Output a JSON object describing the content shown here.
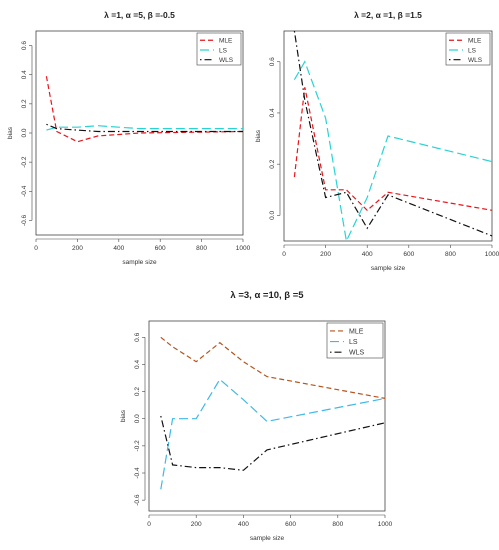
{
  "chart_data": [
    {
      "type": "line",
      "title": "λ =1, α =5, β =-0.5",
      "xlabel": "sample size",
      "ylabel": "bias",
      "x": [
        50,
        100,
        200,
        300,
        400,
        500,
        1000
      ],
      "xlim": [
        0,
        1000
      ],
      "ylim": [
        -0.7,
        0.7
      ],
      "xticks": [
        0,
        200,
        400,
        600,
        800,
        1000
      ],
      "yticks": [
        -0.6,
        -0.4,
        -0.2,
        0.0,
        0.2,
        0.4,
        0.6
      ],
      "legend_position": "top-right",
      "series": [
        {
          "name": "MLE",
          "color": "#e8151b",
          "dash": "dashed",
          "values": [
            0.39,
            0.01,
            -0.06,
            -0.02,
            -0.01,
            0.0,
            0.01
          ]
        },
        {
          "name": "LS",
          "color": "#2ad3d3",
          "dash": "longdash",
          "values": [
            0.02,
            0.04,
            0.04,
            0.05,
            0.04,
            0.03,
            0.03
          ]
        },
        {
          "name": "WLS",
          "color": "#111111",
          "dash": "dotdash",
          "values": [
            0.06,
            0.03,
            0.02,
            0.01,
            0.01,
            0.01,
            0.01
          ]
        }
      ]
    },
    {
      "type": "line",
      "title": "λ =2, α =1, β =1.5",
      "xlabel": "sample size",
      "ylabel": "bias",
      "x": [
        50,
        100,
        200,
        300,
        400,
        500,
        1000
      ],
      "xlim": [
        0,
        1000
      ],
      "ylim": [
        -0.1,
        0.72
      ],
      "xticks": [
        0,
        200,
        400,
        600,
        800,
        1000
      ],
      "yticks": [
        0.0,
        0.2,
        0.4,
        0.6
      ],
      "legend_position": "top-right",
      "series": [
        {
          "name": "MLE",
          "color": "#e8151b",
          "dash": "dashed",
          "values": [
            0.15,
            0.5,
            0.1,
            0.1,
            0.02,
            0.09,
            0.02
          ]
        },
        {
          "name": "LS",
          "color": "#2ad3d3",
          "dash": "longdash",
          "values": [
            0.53,
            0.6,
            0.38,
            -0.1,
            0.07,
            0.31,
            0.21
          ]
        },
        {
          "name": "WLS",
          "color": "#111111",
          "dash": "dotdash",
          "values": [
            0.72,
            0.45,
            0.07,
            0.09,
            -0.05,
            0.08,
            -0.08
          ]
        }
      ]
    },
    {
      "type": "line",
      "title": "λ =3, α =10, β =5",
      "xlabel": "sample size",
      "ylabel": "bias",
      "x": [
        50,
        100,
        200,
        300,
        400,
        500,
        1000
      ],
      "xlim": [
        0,
        1000
      ],
      "ylim": [
        -0.68,
        0.72
      ],
      "xticks": [
        0,
        200,
        400,
        600,
        800,
        1000
      ],
      "yticks": [
        -0.6,
        -0.4,
        -0.2,
        0.0,
        0.2,
        0.4,
        0.6
      ],
      "legend_position": "top-right",
      "series": [
        {
          "name": "MLE",
          "color": "#b5541f",
          "dash": "dashed",
          "values": [
            0.6,
            0.53,
            0.42,
            0.56,
            0.42,
            0.31,
            0.15
          ]
        },
        {
          "name": "LS",
          "color": "#3fb9e6",
          "dash": "longdash",
          "values": [
            -0.52,
            0.0,
            0.0,
            0.29,
            0.14,
            -0.02,
            0.15
          ]
        },
        {
          "name": "WLS",
          "color": "#111111",
          "dash": "dotdash",
          "values": [
            0.02,
            -0.34,
            -0.36,
            -0.36,
            -0.38,
            -0.23,
            -0.03
          ]
        }
      ]
    }
  ]
}
